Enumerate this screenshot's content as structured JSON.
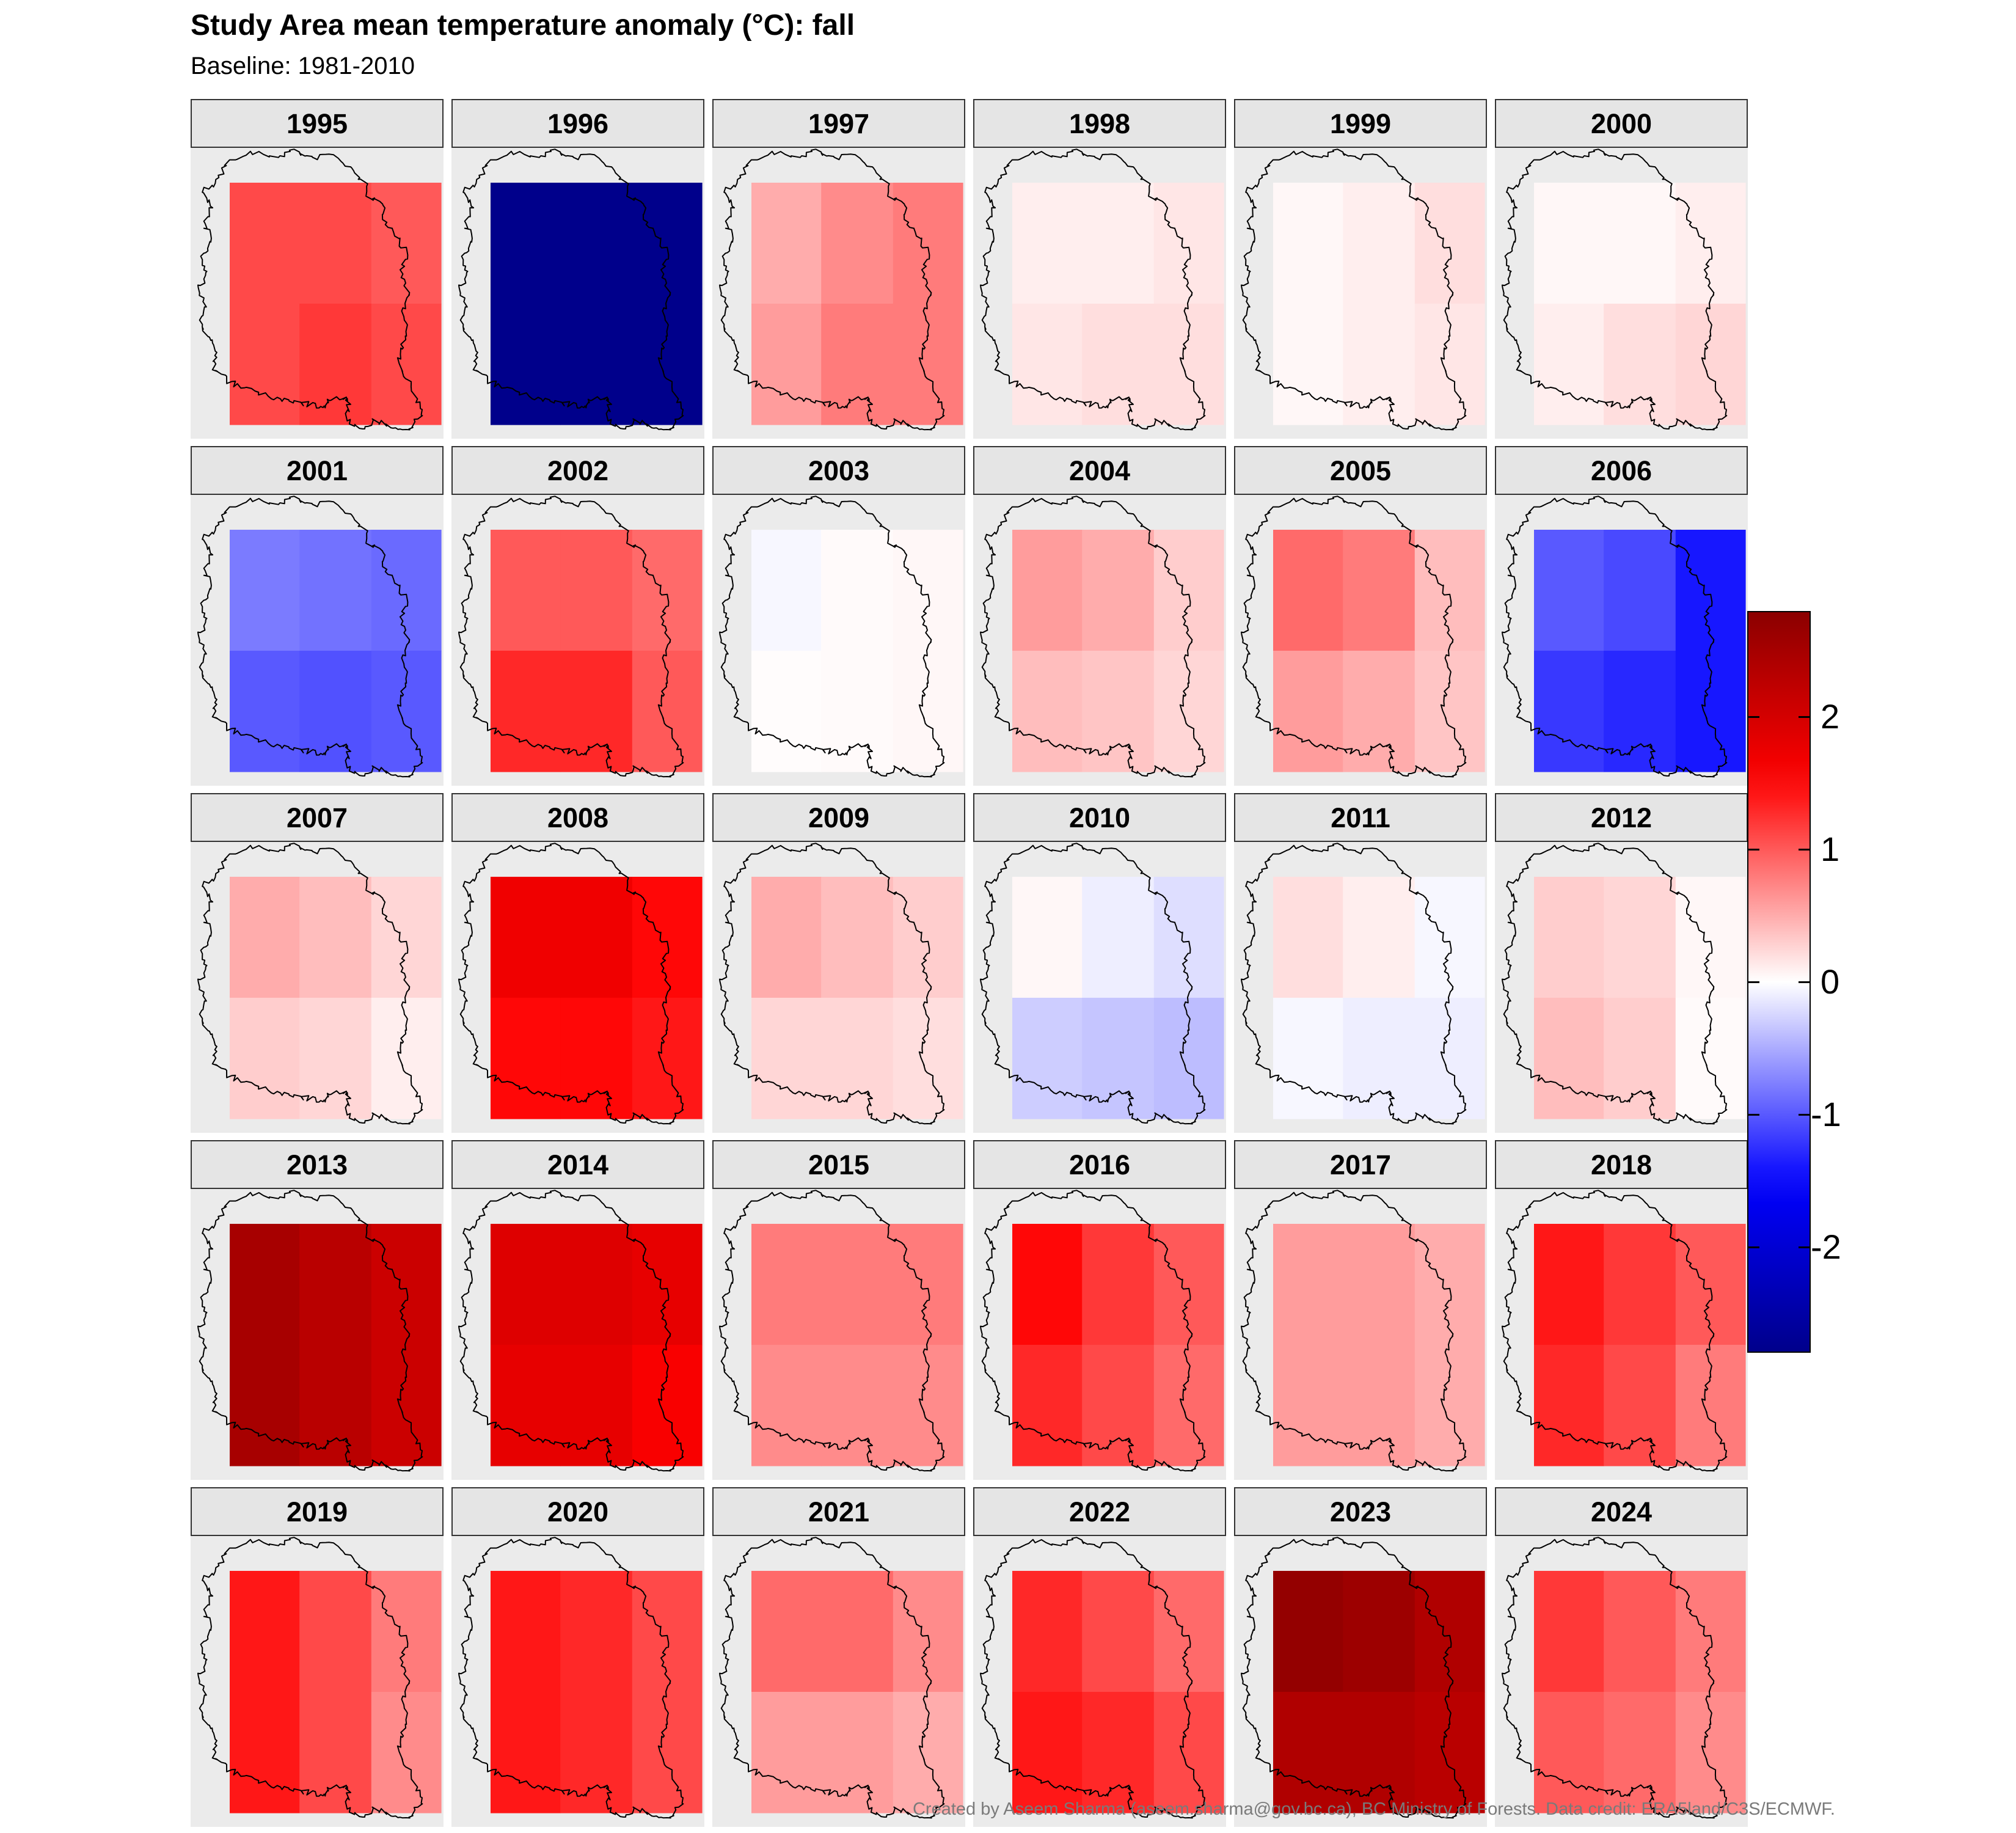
{
  "title": "Study Area mean temperature anomaly (°C): fall",
  "subtitle": "Baseline: 1981-2010",
  "caption": "Created by Aseem Sharma (aseem.sharma@gov.bc.ca), BC Ministry of Forests. Data credit: ERA5land/C3S/ECMWF.",
  "chart_data": {
    "type": "heatmap",
    "legend": {
      "placement": "right",
      "ticks": [
        2,
        1,
        0,
        -1,
        -2
      ],
      "tick_labels": [
        "2",
        "1",
        "0",
        "-1",
        "-2"
      ],
      "range": [
        -2.8,
        2.8
      ]
    },
    "colors": {
      "low": "#00008b",
      "mid": "#ffffff",
      "high": "#8b0000",
      "panel_bg": "#ebebeb",
      "strip_bg": "#e5e5e5"
    },
    "grid": {
      "rows": 2,
      "cols": 3
    },
    "facets": [
      {
        "label": "1995",
        "cells": [
          [
            1.1,
            1.1,
            1.0
          ],
          [
            1.1,
            1.2,
            1.1
          ]
        ]
      },
      {
        "label": "1996",
        "cells": [
          [
            -2.8,
            -2.8,
            -2.8
          ],
          [
            -2.8,
            -2.8,
            -2.8
          ]
        ]
      },
      {
        "label": "1997",
        "cells": [
          [
            0.5,
            0.7,
            0.8
          ],
          [
            0.6,
            0.8,
            0.8
          ]
        ]
      },
      {
        "label": "1998",
        "cells": [
          [
            0.1,
            0.1,
            0.15
          ],
          [
            0.15,
            0.2,
            0.2
          ]
        ]
      },
      {
        "label": "1999",
        "cells": [
          [
            0.05,
            0.1,
            0.2
          ],
          [
            0.05,
            0.1,
            0.15
          ]
        ]
      },
      {
        "label": "2000",
        "cells": [
          [
            0.05,
            0.05,
            0.1
          ],
          [
            0.1,
            0.2,
            0.25
          ]
        ]
      },
      {
        "label": "2001",
        "cells": [
          [
            -0.8,
            -0.85,
            -0.9
          ],
          [
            -1.0,
            -1.05,
            -1.0
          ]
        ]
      },
      {
        "label": "2002",
        "cells": [
          [
            1.0,
            1.0,
            0.9
          ],
          [
            1.3,
            1.3,
            1.0
          ]
        ]
      },
      {
        "label": "2003",
        "cells": [
          [
            -0.05,
            0.03,
            0.05
          ],
          [
            0.02,
            0.03,
            0.05
          ]
        ]
      },
      {
        "label": "2004",
        "cells": [
          [
            0.6,
            0.5,
            0.3
          ],
          [
            0.4,
            0.35,
            0.25
          ]
        ]
      },
      {
        "label": "2005",
        "cells": [
          [
            0.9,
            0.8,
            0.4
          ],
          [
            0.6,
            0.5,
            0.35
          ]
        ]
      },
      {
        "label": "2006",
        "cells": [
          [
            -1.0,
            -1.1,
            -1.4
          ],
          [
            -1.2,
            -1.3,
            -1.4
          ]
        ]
      },
      {
        "label": "2007",
        "cells": [
          [
            0.5,
            0.4,
            0.25
          ],
          [
            0.3,
            0.25,
            0.1
          ]
        ]
      },
      {
        "label": "2008",
        "cells": [
          [
            1.7,
            1.7,
            1.5
          ],
          [
            1.5,
            1.5,
            1.4
          ]
        ]
      },
      {
        "label": "2009",
        "cells": [
          [
            0.5,
            0.4,
            0.3
          ],
          [
            0.25,
            0.25,
            0.2
          ]
        ]
      },
      {
        "label": "2010",
        "cells": [
          [
            0.05,
            -0.1,
            -0.2
          ],
          [
            -0.3,
            -0.35,
            -0.4
          ]
        ]
      },
      {
        "label": "2011",
        "cells": [
          [
            0.2,
            0.1,
            -0.05
          ],
          [
            -0.05,
            -0.1,
            -0.1
          ]
        ]
      },
      {
        "label": "2012",
        "cells": [
          [
            0.3,
            0.25,
            0.05
          ],
          [
            0.4,
            0.3,
            0.03
          ]
        ]
      },
      {
        "label": "2013",
        "cells": [
          [
            2.5,
            2.3,
            2.1
          ],
          [
            2.5,
            2.3,
            2.1
          ]
        ]
      },
      {
        "label": "2014",
        "cells": [
          [
            1.9,
            1.9,
            1.8
          ],
          [
            1.8,
            1.8,
            1.6
          ]
        ]
      },
      {
        "label": "2015",
        "cells": [
          [
            0.8,
            0.8,
            0.8
          ],
          [
            0.7,
            0.7,
            0.7
          ]
        ]
      },
      {
        "label": "2016",
        "cells": [
          [
            1.5,
            1.2,
            1.0
          ],
          [
            1.3,
            1.1,
            0.9
          ]
        ]
      },
      {
        "label": "2017",
        "cells": [
          [
            0.6,
            0.6,
            0.5
          ],
          [
            0.6,
            0.6,
            0.5
          ]
        ]
      },
      {
        "label": "2018",
        "cells": [
          [
            1.4,
            1.2,
            1.0
          ],
          [
            1.3,
            1.1,
            0.8
          ]
        ]
      },
      {
        "label": "2019",
        "cells": [
          [
            1.4,
            1.1,
            0.8
          ],
          [
            1.4,
            1.1,
            0.7
          ]
        ]
      },
      {
        "label": "2020",
        "cells": [
          [
            1.4,
            1.3,
            1.1
          ],
          [
            1.4,
            1.3,
            1.1
          ]
        ]
      },
      {
        "label": "2021",
        "cells": [
          [
            0.9,
            0.9,
            0.7
          ],
          [
            0.6,
            0.6,
            0.5
          ]
        ]
      },
      {
        "label": "2022",
        "cells": [
          [
            1.3,
            1.1,
            0.9
          ],
          [
            1.4,
            1.3,
            1.1
          ]
        ]
      },
      {
        "label": "2023",
        "cells": [
          [
            2.7,
            2.6,
            2.4
          ],
          [
            2.4,
            2.4,
            2.3
          ]
        ]
      },
      {
        "label": "2024",
        "cells": [
          [
            1.2,
            1.0,
            0.8
          ],
          [
            1.0,
            0.9,
            0.7
          ]
        ]
      }
    ]
  }
}
